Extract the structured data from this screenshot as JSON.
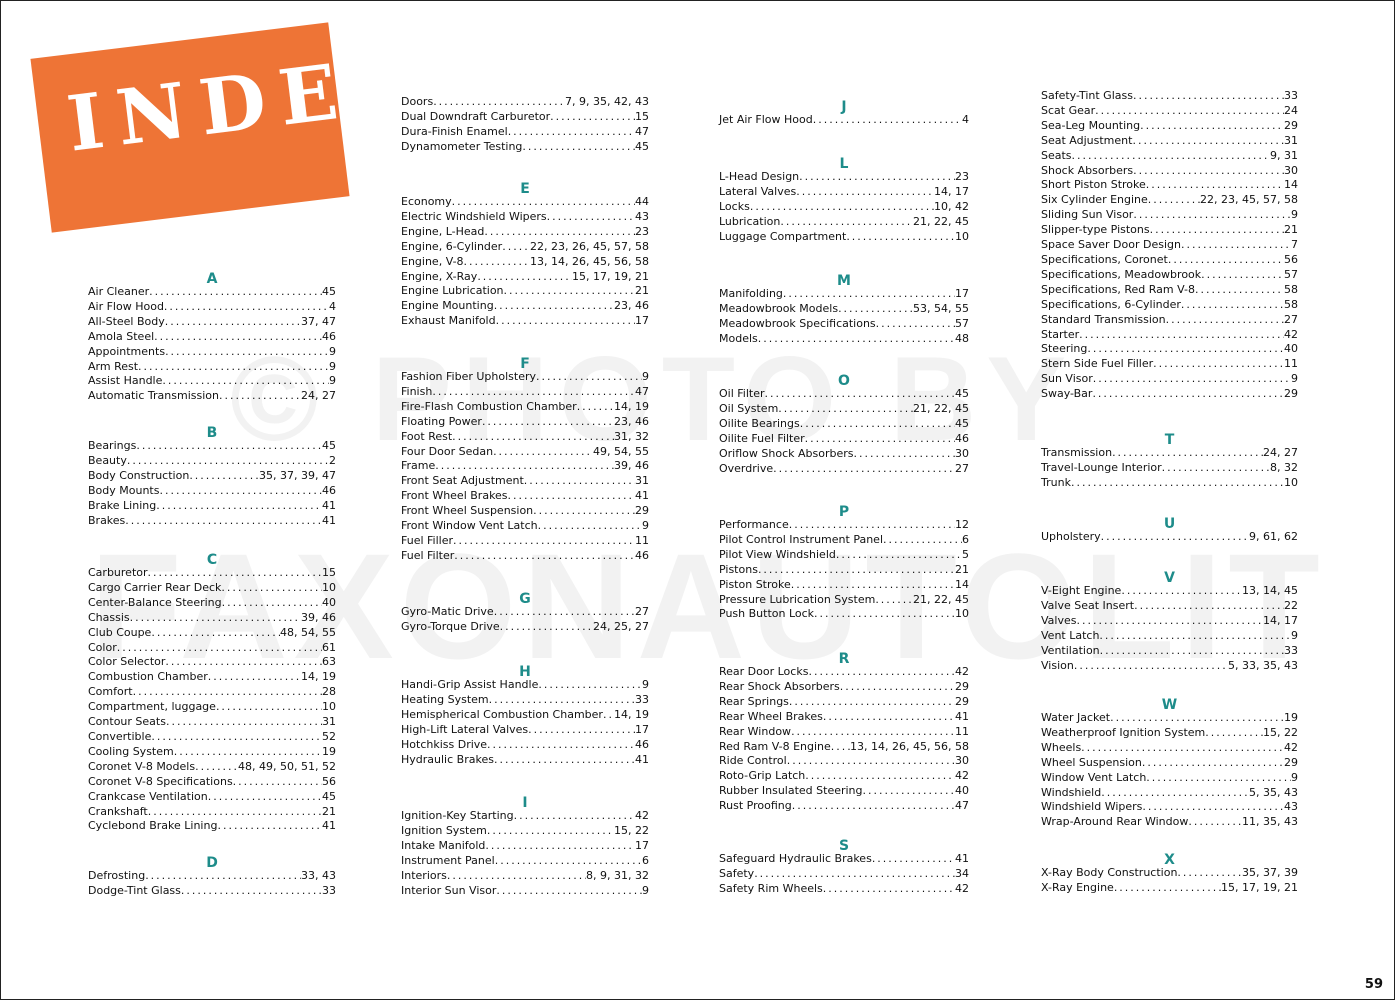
{
  "title": "INDEX",
  "banner_color": "#ee7436",
  "heading_color": "#1e8c8a",
  "watermark": "© PHOTO BY FAXONAUTOLIT",
  "page_number": "59",
  "columns": [
    {
      "groups": [
        {
          "letter": "A",
          "entries": [
            {
              "name": "Air Cleaner",
              "pages": "45"
            },
            {
              "name": "Air Flow Hood",
              "pages": "4"
            },
            {
              "name": "All-Steel Body",
              "pages": "37, 47"
            },
            {
              "name": "Amola Steel",
              "pages": "46"
            },
            {
              "name": "Appointments",
              "pages": "9"
            },
            {
              "name": "Arm Rest",
              "pages": "9"
            },
            {
              "name": "Assist Handle",
              "pages": "9"
            },
            {
              "name": "Automatic Transmission",
              "pages": "24, 27"
            }
          ]
        },
        {
          "letter": "B",
          "entries": [
            {
              "name": "Bearings",
              "pages": "45"
            },
            {
              "name": "Beauty",
              "pages": "2"
            },
            {
              "name": "Body Construction",
              "pages": "35, 37, 39, 47"
            },
            {
              "name": "Body Mounts",
              "pages": "46"
            },
            {
              "name": "Brake Lining",
              "pages": "41"
            },
            {
              "name": "Brakes",
              "pages": "41"
            }
          ]
        },
        {
          "letter": "C",
          "entries": [
            {
              "name": "Carburetor",
              "pages": "15"
            },
            {
              "name": "Cargo Carrier Rear Deck",
              "pages": "10"
            },
            {
              "name": "Center-Balance Steering",
              "pages": "40"
            },
            {
              "name": "Chassis",
              "pages": "39, 46"
            },
            {
              "name": "Club Coupe",
              "pages": "48, 54, 55"
            },
            {
              "name": "Color",
              "pages": "61"
            },
            {
              "name": "Color Selector",
              "pages": "63"
            },
            {
              "name": "Combustion Chamber",
              "pages": "14, 19"
            },
            {
              "name": "Comfort",
              "pages": "28"
            },
            {
              "name": "Compartment, luggage",
              "pages": "10"
            },
            {
              "name": "Contour Seats",
              "pages": "31"
            },
            {
              "name": "Convertible",
              "pages": "52"
            },
            {
              "name": "Cooling System",
              "pages": "19"
            },
            {
              "name": "Coronet V-8 Models",
              "pages": "48, 49, 50, 51, 52"
            },
            {
              "name": "Coronet V-8 Specifications",
              "pages": "56"
            },
            {
              "name": "Crankcase Ventilation",
              "pages": "45"
            },
            {
              "name": "Crankshaft",
              "pages": "21"
            },
            {
              "name": "Cyclebond Brake Lining",
              "pages": "41"
            }
          ]
        },
        {
          "letter": "D",
          "entries": [
            {
              "name": "Defrosting",
              "pages": "33, 43"
            },
            {
              "name": "Dodge-Tint Glass",
              "pages": "33"
            }
          ]
        }
      ]
    },
    {
      "groups": [
        {
          "letter": "",
          "entries": [
            {
              "name": "Doors",
              "pages": "7, 9, 35, 42, 43"
            },
            {
              "name": "Dual Downdraft Carburetor",
              "pages": "15"
            },
            {
              "name": "Dura-Finish Enamel",
              "pages": "47"
            },
            {
              "name": "Dynamometer Testing",
              "pages": "45"
            }
          ]
        },
        {
          "letter": "E",
          "entries": [
            {
              "name": "Economy",
              "pages": "44"
            },
            {
              "name": "Electric Windshield Wipers",
              "pages": "43"
            },
            {
              "name": "Engine, L-Head",
              "pages": "23"
            },
            {
              "name": "Engine, 6-Cylinder",
              "pages": "22, 23, 26, 45, 57, 58"
            },
            {
              "name": "Engine, V-8",
              "pages": "13, 14, 26, 45, 56, 58"
            },
            {
              "name": "Engine, X-Ray",
              "pages": "15, 17, 19, 21"
            },
            {
              "name": "Engine Lubrication",
              "pages": "21"
            },
            {
              "name": "Engine Mounting",
              "pages": "23, 46"
            },
            {
              "name": "Exhaust Manifold",
              "pages": "17"
            }
          ]
        },
        {
          "letter": "F",
          "entries": [
            {
              "name": "Fashion Fiber Upholstery",
              "pages": "9"
            },
            {
              "name": "Finish",
              "pages": "47"
            },
            {
              "name": "Fire-Flash Combustion Chamber",
              "pages": "14, 19"
            },
            {
              "name": "Floating Power",
              "pages": "23, 46"
            },
            {
              "name": "Foot Rest",
              "pages": "31, 32"
            },
            {
              "name": "Four Door Sedan",
              "pages": "49, 54, 55"
            },
            {
              "name": "Frame",
              "pages": "39, 46"
            },
            {
              "name": "Front Seat Adjustment",
              "pages": "31"
            },
            {
              "name": "Front Wheel Brakes",
              "pages": "41"
            },
            {
              "name": "Front Wheel Suspension",
              "pages": "29"
            },
            {
              "name": "Front Window Vent Latch",
              "pages": "9"
            },
            {
              "name": "Fuel Filler",
              "pages": "11"
            },
            {
              "name": "Fuel Filter",
              "pages": "46"
            }
          ]
        },
        {
          "letter": "G",
          "entries": [
            {
              "name": "Gyro-Matic Drive",
              "pages": "27"
            },
            {
              "name": "Gyro-Torque Drive",
              "pages": "24, 25, 27"
            }
          ]
        },
        {
          "letter": "H",
          "entries": [
            {
              "name": "Handi-Grip Assist Handle",
              "pages": "9"
            },
            {
              "name": "Heating System",
              "pages": "33"
            },
            {
              "name": "Hemispherical Combustion Chamber",
              "pages": "14, 19"
            },
            {
              "name": "High-Lift Lateral Valves",
              "pages": "17"
            },
            {
              "name": "Hotchkiss Drive",
              "pages": "46"
            },
            {
              "name": "Hydraulic Brakes",
              "pages": "41"
            }
          ]
        },
        {
          "letter": "I",
          "entries": [
            {
              "name": "Ignition-Key Starting",
              "pages": "42"
            },
            {
              "name": "Ignition System",
              "pages": "15, 22"
            },
            {
              "name": "Intake Manifold",
              "pages": "17"
            },
            {
              "name": "Instrument Panel",
              "pages": "6"
            },
            {
              "name": "Interiors",
              "pages": "8, 9, 31, 32"
            },
            {
              "name": "Interior Sun Visor",
              "pages": "9"
            }
          ]
        }
      ]
    },
    {
      "groups": [
        {
          "letter": "J",
          "entries": [
            {
              "name": "Jet Air Flow Hood",
              "pages": "4"
            }
          ]
        },
        {
          "letter": "L",
          "entries": [
            {
              "name": "L-Head Design",
              "pages": "23"
            },
            {
              "name": "Lateral Valves",
              "pages": "14, 17"
            },
            {
              "name": "Locks",
              "pages": "10, 42"
            },
            {
              "name": "Lubrication",
              "pages": "21, 22, 45"
            },
            {
              "name": "Luggage Compartment",
              "pages": "10"
            }
          ]
        },
        {
          "letter": "M",
          "entries": [
            {
              "name": "Manifolding",
              "pages": "17"
            },
            {
              "name": "Meadowbrook Models",
              "pages": "53, 54, 55"
            },
            {
              "name": "Meadowbrook Specifications",
              "pages": "57"
            },
            {
              "name": "Models",
              "pages": "48"
            }
          ]
        },
        {
          "letter": "O",
          "entries": [
            {
              "name": "Oil Filter",
              "pages": "45"
            },
            {
              "name": "Oil System",
              "pages": "21, 22, 45"
            },
            {
              "name": "Oilite Bearings",
              "pages": "45"
            },
            {
              "name": "Oilite Fuel Filter",
              "pages": "46"
            },
            {
              "name": "Oriflow Shock Absorbers",
              "pages": "30"
            },
            {
              "name": "Overdrive",
              "pages": "27"
            }
          ]
        },
        {
          "letter": "P",
          "entries": [
            {
              "name": "Performance",
              "pages": "12"
            },
            {
              "name": "Pilot Control Instrument Panel",
              "pages": "6"
            },
            {
              "name": "Pilot View Windshield",
              "pages": "5"
            },
            {
              "name": "Pistons",
              "pages": "21"
            },
            {
              "name": "Piston Stroke",
              "pages": "14"
            },
            {
              "name": "Pressure Lubrication System",
              "pages": "21, 22, 45"
            },
            {
              "name": "Push Button Lock",
              "pages": "10"
            }
          ]
        },
        {
          "letter": "R",
          "entries": [
            {
              "name": "Rear Door Locks",
              "pages": "42"
            },
            {
              "name": "Rear Shock Absorbers",
              "pages": "29"
            },
            {
              "name": "Rear Springs",
              "pages": "29"
            },
            {
              "name": "Rear Wheel Brakes",
              "pages": "41"
            },
            {
              "name": "Rear Window",
              "pages": "11"
            },
            {
              "name": "Red Ram V-8 Engine",
              "pages": "13, 14, 26, 45, 56, 58"
            },
            {
              "name": "Ride Control",
              "pages": "30"
            },
            {
              "name": "Roto-Grip Latch",
              "pages": "42"
            },
            {
              "name": "Rubber Insulated Steering",
              "pages": "40"
            },
            {
              "name": "Rust Proofing",
              "pages": "47"
            }
          ]
        },
        {
          "letter": "S",
          "entries": [
            {
              "name": "Safeguard Hydraulic Brakes",
              "pages": "41"
            },
            {
              "name": "Safety",
              "pages": "34"
            },
            {
              "name": "Safety Rim Wheels",
              "pages": "42"
            }
          ]
        }
      ]
    },
    {
      "groups": [
        {
          "letter": "",
          "entries": [
            {
              "name": "Safety-Tint Glass",
              "pages": "33"
            },
            {
              "name": "Scat Gear",
              "pages": "24"
            },
            {
              "name": "Sea-Leg Mounting",
              "pages": "29"
            },
            {
              "name": "Seat Adjustment",
              "pages": "31"
            },
            {
              "name": "Seats",
              "pages": "9, 31"
            },
            {
              "name": "Shock Absorbers",
              "pages": "30"
            },
            {
              "name": "Short Piston Stroke",
              "pages": "14"
            },
            {
              "name": "Six Cylinder Engine",
              "pages": "22, 23, 45, 57, 58"
            },
            {
              "name": "Sliding Sun Visor",
              "pages": "9"
            },
            {
              "name": "Slipper-type Pistons",
              "pages": "21"
            },
            {
              "name": "Space Saver Door Design",
              "pages": "7"
            },
            {
              "name": "Specifications, Coronet",
              "pages": "56"
            },
            {
              "name": "Specifications, Meadowbrook",
              "pages": "57"
            },
            {
              "name": "Specifications, Red Ram V-8",
              "pages": "58"
            },
            {
              "name": "Specifications, 6-Cylinder",
              "pages": "58"
            },
            {
              "name": "Standard Transmission",
              "pages": "27"
            },
            {
              "name": "Starter",
              "pages": "42"
            },
            {
              "name": "Steering",
              "pages": "40"
            },
            {
              "name": "Stern Side Fuel Filler",
              "pages": "11"
            },
            {
              "name": "Sun Visor",
              "pages": "9"
            },
            {
              "name": "Sway-Bar",
              "pages": "29"
            }
          ]
        },
        {
          "letter": "T",
          "entries": [
            {
              "name": "Transmission",
              "pages": "24, 27"
            },
            {
              "name": "Travel-Lounge Interior",
              "pages": "8, 32"
            },
            {
              "name": "Trunk",
              "pages": "10"
            }
          ]
        },
        {
          "letter": "U",
          "entries": [
            {
              "name": "Upholstery",
              "pages": "9, 61, 62"
            }
          ]
        },
        {
          "letter": "V",
          "entries": [
            {
              "name": "V-Eight Engine",
              "pages": "13, 14, 45"
            },
            {
              "name": "Valve Seat Insert",
              "pages": "22"
            },
            {
              "name": "Valves",
              "pages": "14, 17"
            },
            {
              "name": "Vent Latch",
              "pages": "9"
            },
            {
              "name": "Ventilation",
              "pages": "33"
            },
            {
              "name": "Vision",
              "pages": "5, 33, 35, 43"
            }
          ]
        },
        {
          "letter": "W",
          "entries": [
            {
              "name": "Water Jacket",
              "pages": "19"
            },
            {
              "name": "Weatherproof Ignition System",
              "pages": "15, 22"
            },
            {
              "name": "Wheels",
              "pages": "42"
            },
            {
              "name": "Wheel Suspension",
              "pages": "29"
            },
            {
              "name": "Window Vent Latch",
              "pages": "9"
            },
            {
              "name": "Windshield",
              "pages": "5, 35, 43"
            },
            {
              "name": "Windshield Wipers",
              "pages": "43"
            },
            {
              "name": "Wrap-Around Rear Window",
              "pages": "11, 35, 43"
            }
          ]
        },
        {
          "letter": "X",
          "entries": [
            {
              "name": "X-Ray Body Construction",
              "pages": "35, 37, 39"
            },
            {
              "name": "X-Ray Engine",
              "pages": "15, 17, 19, 21"
            }
          ]
        }
      ]
    }
  ]
}
